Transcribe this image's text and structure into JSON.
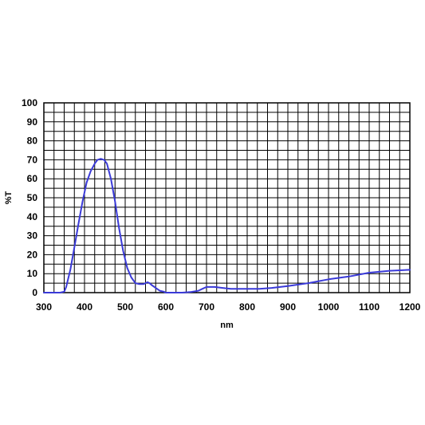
{
  "chart_data": {
    "type": "line",
    "title": "",
    "xlabel": "nm",
    "ylabel": "%T",
    "xlim": [
      300,
      1200
    ],
    "ylim": [
      0,
      100
    ],
    "x_ticks": [
      300,
      400,
      500,
      600,
      700,
      800,
      900,
      1000,
      1100,
      1200
    ],
    "y_ticks": [
      0,
      10,
      20,
      30,
      40,
      50,
      60,
      70,
      80,
      90,
      100
    ],
    "grid": true,
    "x_grid_step": 25,
    "y_grid_step": 5,
    "line_color": "#3a3ad8",
    "series": [
      {
        "points": [
          [
            300,
            0
          ],
          [
            340,
            0
          ],
          [
            350,
            0.5
          ],
          [
            355,
            3
          ],
          [
            365,
            12
          ],
          [
            375,
            24
          ],
          [
            385,
            36
          ],
          [
            395,
            48
          ],
          [
            405,
            58
          ],
          [
            415,
            64
          ],
          [
            425,
            68
          ],
          [
            432,
            70
          ],
          [
            440,
            70.5
          ],
          [
            448,
            70
          ],
          [
            455,
            68
          ],
          [
            465,
            60
          ],
          [
            475,
            48
          ],
          [
            485,
            34
          ],
          [
            495,
            22
          ],
          [
            505,
            13
          ],
          [
            515,
            8
          ],
          [
            525,
            5
          ],
          [
            535,
            4.5
          ],
          [
            545,
            4.5
          ],
          [
            550,
            5
          ],
          [
            555,
            5.5
          ],
          [
            560,
            5
          ],
          [
            565,
            4
          ],
          [
            575,
            2.5
          ],
          [
            585,
            1
          ],
          [
            595,
            0.5
          ],
          [
            600,
            0
          ],
          [
            640,
            0
          ],
          [
            660,
            0.3
          ],
          [
            680,
            1
          ],
          [
            690,
            2
          ],
          [
            700,
            3
          ],
          [
            720,
            3
          ],
          [
            740,
            2.5
          ],
          [
            760,
            2
          ],
          [
            800,
            2
          ],
          [
            830,
            2
          ],
          [
            860,
            2.5
          ],
          [
            900,
            3.5
          ],
          [
            950,
            5
          ],
          [
            1000,
            7
          ],
          [
            1050,
            8.5
          ],
          [
            1100,
            10.5
          ],
          [
            1150,
            11.5
          ],
          [
            1200,
            12
          ]
        ]
      }
    ]
  }
}
